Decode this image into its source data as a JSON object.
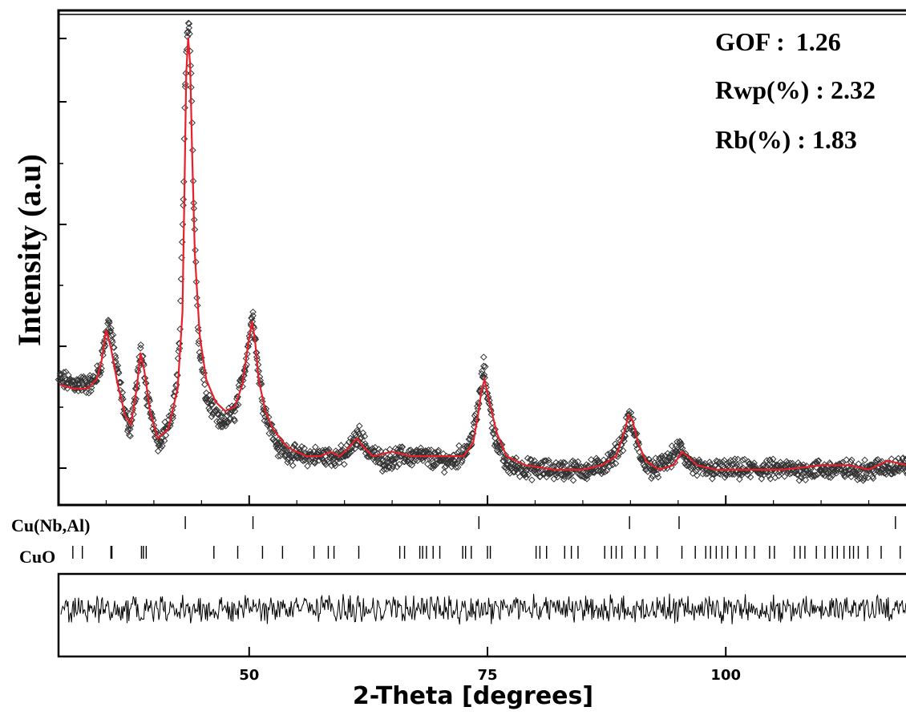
{
  "chart_data": {
    "type": "line",
    "title": "",
    "xlabel": "2-Theta [degrees]",
    "ylabel": "Intensity (a.u)",
    "xlim": [
      30,
      120
    ],
    "xticks": [
      50,
      75,
      100
    ],
    "ylim": [
      0,
      100
    ],
    "grid": false,
    "legend": "none",
    "stats": [
      {
        "label": "GOF :",
        "value": "1.26"
      },
      {
        "label": "Rwp(%) :",
        "value": "2.32"
      },
      {
        "label": "Rb(%) :",
        "value": "1.83"
      }
    ],
    "series": [
      {
        "name": "",
        "role": "observed",
        "marker": "open-diamond",
        "color": "#000000",
        "x": [
          30.0,
          32.0,
          33.5,
          34.3,
          34.8,
          35.3,
          36.0,
          37.0,
          37.5,
          38.2,
          38.6,
          39.3,
          40.5,
          42.0,
          42.7,
          43.1,
          43.3,
          43.5,
          43.7,
          43.9,
          44.2,
          44.7,
          45.5,
          47.0,
          48.5,
          49.5,
          50.2,
          50.4,
          50.8,
          51.5,
          53.0,
          55.0,
          57.0,
          58.0,
          60.0,
          61.0,
          61.5,
          62.5,
          64.0,
          66.0,
          68.0,
          70.0,
          71.5,
          73.0,
          73.8,
          74.3,
          74.6,
          75.0,
          75.8,
          77.0,
          80.0,
          83.0,
          86.0,
          88.0,
          89.3,
          89.8,
          90.3,
          91.2,
          92.5,
          94.0,
          95.3,
          95.9,
          97.0,
          100.0,
          105.0,
          110.0,
          115.0,
          118.0,
          120.0
        ],
        "y": [
          20,
          19,
          19,
          22,
          28,
          33,
          24,
          12,
          9,
          18,
          27,
          16,
          6,
          12,
          28,
          60,
          85,
          97,
          99,
          88,
          58,
          28,
          16,
          10,
          13,
          22,
          32,
          35,
          25,
          14,
          5,
          3,
          3,
          3,
          3,
          6,
          8,
          4,
          2,
          3,
          3,
          2,
          2,
          5,
          11,
          18,
          23,
          17,
          7,
          1,
          0,
          0,
          0,
          2,
          7,
          12,
          9,
          2,
          0,
          2,
          5,
          2,
          0,
          0,
          0,
          0,
          0,
          1,
          1
        ]
      },
      {
        "name": "",
        "role": "calculated",
        "color": "#e8202a",
        "x": [
          30.0,
          31.5,
          33.0,
          34.0,
          34.5,
          35.0,
          35.5,
          36.2,
          37.0,
          37.6,
          38.2,
          38.6,
          39.0,
          39.6,
          40.4,
          41.5,
          42.5,
          43.0,
          43.2,
          43.4,
          43.6,
          43.8,
          44.0,
          44.3,
          44.8,
          45.5,
          46.5,
          47.5,
          48.5,
          49.3,
          49.9,
          50.3,
          50.6,
          51.0,
          51.7,
          52.5,
          54.0,
          56.0,
          57.5,
          58.5,
          59.5,
          60.5,
          61.3,
          62.0,
          63.0,
          65.0,
          67.0,
          69.0,
          71.0,
          72.5,
          73.5,
          74.0,
          74.4,
          74.7,
          75.2,
          76.0,
          77.0,
          79.0,
          82.0,
          85.0,
          87.0,
          88.5,
          89.3,
          89.8,
          90.2,
          90.8,
          91.6,
          93.0,
          94.5,
          95.4,
          96.0,
          97.0,
          99.0,
          102.0,
          106.0,
          110.0,
          113.0,
          115.0,
          117.0,
          119.0,
          120.0
        ],
        "y": [
          19,
          18,
          18,
          20,
          24,
          31,
          27,
          19,
          12,
          10,
          18,
          26,
          22,
          13,
          7,
          9,
          18,
          35,
          60,
          88,
          96,
          90,
          72,
          48,
          30,
          20,
          15,
          13,
          14,
          19,
          28,
          33,
          29,
          20,
          13,
          9,
          5,
          3,
          3,
          4,
          3,
          5,
          7,
          5,
          3,
          4,
          3,
          3,
          3,
          3,
          6,
          12,
          18,
          20,
          15,
          8,
          3,
          1,
          0,
          0,
          1,
          3,
          8,
          12,
          11,
          6,
          2,
          0,
          1,
          4,
          3,
          1,
          0,
          0,
          0,
          1,
          1,
          0,
          2,
          1,
          0
        ]
      },
      {
        "name": "",
        "role": "difference",
        "color": "#000000"
      }
    ],
    "phase_labels": [
      "Cu(Nb,Al)",
      "CuO"
    ],
    "reflections": {
      "Cu(Nb,Al)": [
        43.3,
        50.4,
        74.1,
        89.9,
        95.1,
        117.8
      ],
      "CuO": [
        31.5,
        32.5,
        35.5,
        35.6,
        38.7,
        38.9,
        39.2,
        46.3,
        48.8,
        51.4,
        53.5,
        56.8,
        58.3,
        58.9,
        61.5,
        65.8,
        66.3,
        67.9,
        68.2,
        68.6,
        69.3,
        70.0,
        72.4,
        72.7,
        73.3,
        75.0,
        75.3,
        80.1,
        80.5,
        81.2,
        83.1,
        83.8,
        84.5,
        87.3,
        88.0,
        88.5,
        89.1,
        90.5,
        91.5,
        92.8,
        95.4,
        96.8,
        97.9,
        98.4,
        99.0,
        99.6,
        100.2,
        101.1,
        102.1,
        103.0,
        104.6,
        105.1,
        107.2,
        107.8,
        108.3,
        109.5,
        110.4,
        111.2,
        111.7,
        112.4,
        113.0,
        113.4,
        113.9,
        114.9,
        116.3,
        118.3,
        119.3
      ]
    }
  }
}
